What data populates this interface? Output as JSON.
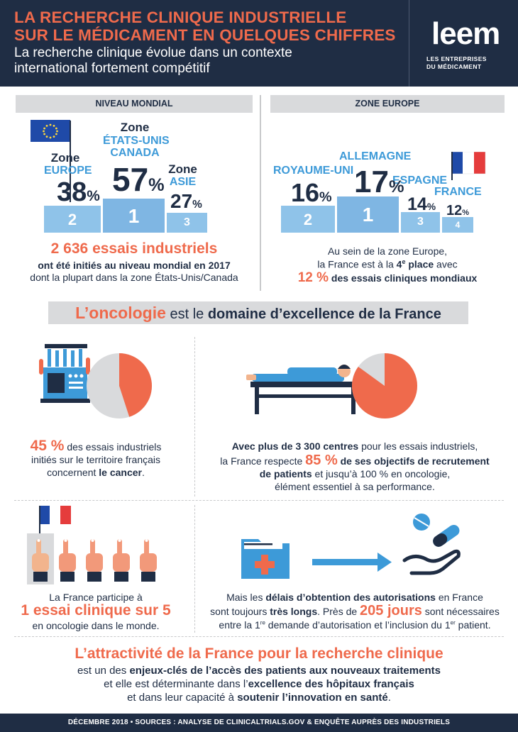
{
  "header": {
    "title_line1": "LA RECHERCHE CLINIQUE INDUSTRIELLE",
    "title_line2": "SUR LE MÉDICAMENT EN QUELQUES CHIFFRES",
    "subtitle_line1": "La recherche clinique évolue dans un contexte",
    "subtitle_line2": "international fortement compétitif",
    "logo_text": "leem",
    "logo_sub1": "LES ENTREPRISES",
    "logo_sub2": "DU MÉDICAMENT"
  },
  "mondial": {
    "heading": "NIVEAU MONDIAL",
    "podium": [
      {
        "rank": "1",
        "zone_prefix": "Zone",
        "zone_name1": "ÉTATS-UNIS",
        "zone_name2": "CANADA",
        "value": "57",
        "unit": "%"
      },
      {
        "rank": "2",
        "zone_prefix": "Zone",
        "zone_name1": "EUROPE",
        "value": "38",
        "unit": "%"
      },
      {
        "rank": "3",
        "zone_prefix": "Zone",
        "zone_name1": "ASIE",
        "value": "27",
        "unit": "%"
      }
    ],
    "total_value": "2 636",
    "total_label": " essais industriels",
    "line2": "ont été initiés au niveau mondial en 2017",
    "line3": "dont la plupart dans la zone États-Unis/Canada"
  },
  "europe": {
    "heading": "ZONE EUROPE",
    "podium": [
      {
        "rank": "1",
        "country": "ALLEMAGNE",
        "value": "17",
        "unit": "%"
      },
      {
        "rank": "2",
        "country": "ROYAUME-UNI",
        "value": "16",
        "unit": "%"
      },
      {
        "rank": "3",
        "country": "ESPAGNE",
        "value": "14",
        "unit": "%"
      },
      {
        "rank": "4",
        "country": "FRANCE",
        "value": "12",
        "unit": "%"
      }
    ],
    "line1": "Au sein de la zone Europe,",
    "line2_pre": "la France est à la ",
    "line2_bold": "4",
    "line2_sup": "e",
    "line2_bold2": " place",
    "line2_post": " avec",
    "line3_value": "12 %",
    "line3_label": " des essais cliniques mondiaux"
  },
  "oncology": {
    "heading_orange": "L’oncologie",
    "heading_mid": " est le ",
    "heading_bold": "domaine d’excellence de la France"
  },
  "stat_cancer": {
    "value": "45 %",
    "text1": " des essais industriels",
    "text2": "initiés sur le territoire français",
    "text3_pre": "concernent ",
    "text3_bold": "le cancer",
    "text3_post": ".",
    "pie_fraction": 0.45
  },
  "stat_centres": {
    "line1_bold": "Avec plus de 3 300 centres",
    "line1_post": " pour les essais industriels,",
    "line2_pre": "la France respecte ",
    "line2_value": "85 %",
    "line2_bold": " de ses objectifs de recrutement",
    "line3_bold": "de patients",
    "line3_post": " et jusqu’à 100 % en oncologie,",
    "line4": "élément essentiel à sa performance.",
    "pie_fraction": 0.85
  },
  "stat_participation": {
    "line1": "La France participe à",
    "value1": "1 essai clinique",
    "value2": " sur 5",
    "line3": "en oncologie dans le monde."
  },
  "stat_delays": {
    "line1_pre": "Mais les ",
    "line1_bold": "délais d’obtention des autorisations",
    "line1_post": " en France",
    "line2_pre": "sont toujours ",
    "line2_bold": "très longs",
    "line2_mid": ". Près de ",
    "line2_value": "205 jours",
    "line2_post": " sont nécessaires",
    "line3_pre": "entre la 1",
    "line3_sup1": "re",
    "line3_mid": " demande d’autorisation et l’inclusion du 1",
    "line3_sup2": "er",
    "line3_post": " patient."
  },
  "conclusion": {
    "heading": "L’attractivité de la France pour la recherche clinique",
    "line1_pre": "est un des ",
    "line1_bold": "enjeux-clés de l’accès des patients aux nouveaux traitements",
    "line2_pre": "et elle est déterminante dans l’",
    "line2_bold": "excellence des hôpitaux français",
    "line3_pre": "et dans leur capacité à ",
    "line3_bold": "soutenir l’innovation en santé",
    "line3_post": "."
  },
  "footer": {
    "text": "DÉCEMBRE 2018 • SOURCES : ANALYSE DE CLINICALTRIALS.GOV & ENQUÊTE AUPRÈS DES INDUSTRIELS"
  },
  "colors": {
    "navy": "#1f2d44",
    "orange": "#ef6a4c",
    "blue": "#3d9ad8",
    "light_blue": "#8fc3e9",
    "grey": "#d9dadc"
  },
  "icons": [
    "eu-flag-icon",
    "france-flag-icon",
    "lab-machine-icon",
    "patient-bed-icon",
    "hand-vote-icon",
    "medical-folder-icon",
    "arrow-right-icon",
    "pills-hand-icon"
  ]
}
